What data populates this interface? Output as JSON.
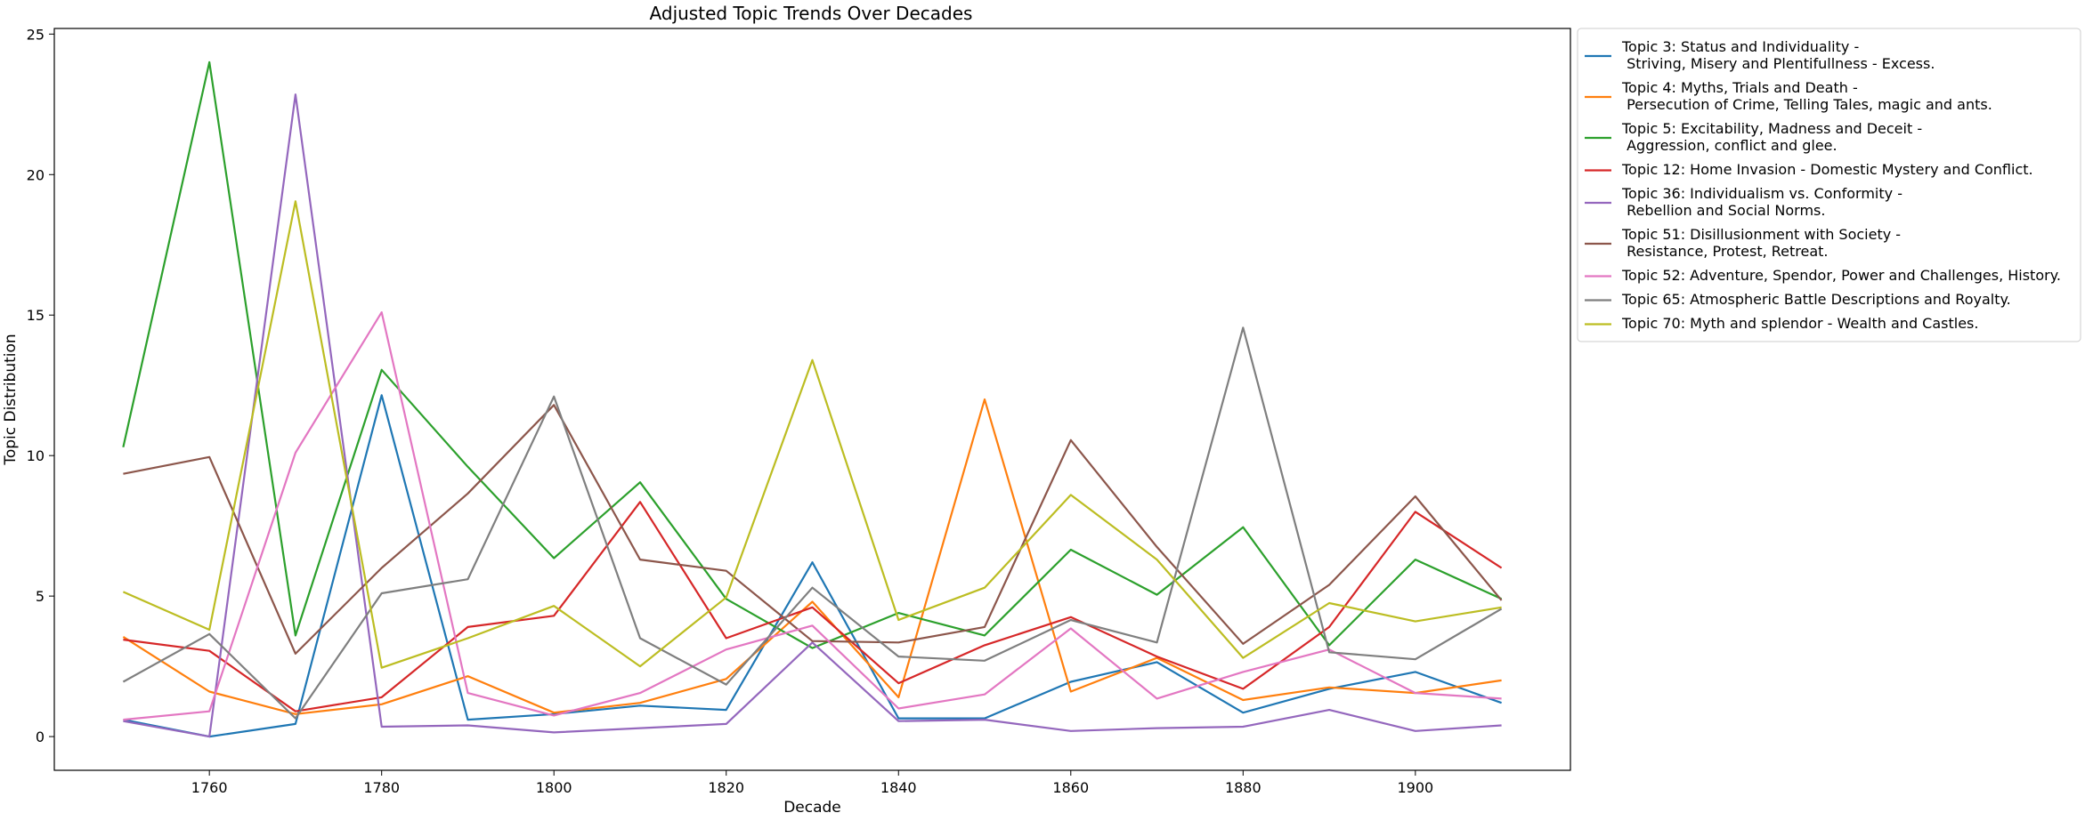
{
  "chart_data": {
    "type": "line",
    "title": "Adjusted Topic Trends Over Decades",
    "xlabel": "Decade",
    "ylabel": "Topic Distribution",
    "x": [
      1750,
      1760,
      1770,
      1780,
      1790,
      1800,
      1810,
      1820,
      1830,
      1840,
      1850,
      1860,
      1870,
      1880,
      1890,
      1900,
      1910
    ],
    "xlim": [
      1742,
      1918
    ],
    "ylim": [
      -1.2,
      25.2
    ],
    "xticks": [
      1760,
      1780,
      1800,
      1820,
      1840,
      1860,
      1880,
      1900
    ],
    "yticks": [
      0,
      5,
      10,
      15,
      20,
      25
    ],
    "grid": false,
    "legend_position": "outside-top-right",
    "series": [
      {
        "name": "Topic 3: Status and Individuality -\n Striving, Misery and Plentifullness - Excess.",
        "color": "#1f77b4",
        "values": [
          0.6,
          0.0,
          0.45,
          12.15,
          0.6,
          0.8,
          1.1,
          0.95,
          6.2,
          0.65,
          0.65,
          1.95,
          2.65,
          0.85,
          1.7,
          2.3,
          1.2
        ]
      },
      {
        "name": "Topic 4: Myths, Trials and Death -\n Persecution of Crime, Telling Tales, magic and ants.",
        "color": "#ff7f0e",
        "values": [
          3.55,
          1.6,
          0.8,
          1.15,
          2.15,
          0.85,
          1.2,
          2.05,
          4.8,
          1.4,
          12.0,
          1.6,
          2.8,
          1.3,
          1.75,
          1.55,
          2.0
        ]
      },
      {
        "name": "Topic 5: Excitability, Madness and Deceit -\n Aggression, conflict and glee.",
        "color": "#2ca02c",
        "values": [
          10.3,
          24.0,
          3.6,
          13.05,
          9.6,
          6.35,
          9.05,
          4.9,
          3.15,
          4.4,
          3.6,
          6.65,
          5.05,
          7.45,
          3.25,
          6.3,
          4.9
        ]
      },
      {
        "name": "Topic 12: Home Invasion - Domestic Mystery and Conflict.",
        "color": "#d62728",
        "values": [
          3.45,
          3.05,
          0.9,
          1.4,
          3.9,
          4.3,
          8.35,
          3.5,
          4.6,
          1.9,
          3.25,
          4.25,
          2.85,
          1.7,
          3.9,
          8.0,
          6.0
        ]
      },
      {
        "name": "Topic 36: Individualism vs. Conformity -\n Rebellion and Social Norms.",
        "color": "#9467bd",
        "values": [
          0.55,
          0.0,
          22.85,
          0.35,
          0.4,
          0.15,
          0.3,
          0.45,
          3.35,
          0.55,
          0.6,
          0.2,
          0.3,
          0.35,
          0.95,
          0.2,
          0.4
        ]
      },
      {
        "name": "Topic 51: Disillusionment with Society -\n Resistance, Protest, Retreat.",
        "color": "#8c564b",
        "values": [
          9.35,
          9.95,
          2.95,
          6.0,
          8.65,
          11.8,
          6.3,
          5.9,
          3.4,
          3.35,
          3.9,
          10.55,
          6.75,
          3.3,
          5.4,
          8.55,
          4.85
        ]
      },
      {
        "name": "Topic 52: Adventure, Spendor, Power and Challenges, History.",
        "color": "#e377c2",
        "values": [
          0.6,
          0.9,
          10.1,
          15.1,
          1.55,
          0.75,
          1.55,
          3.1,
          3.95,
          1.0,
          1.5,
          3.85,
          1.35,
          2.3,
          3.1,
          1.55,
          1.35
        ]
      },
      {
        "name": "Topic 65: Atmospheric Battle Descriptions and Royalty.",
        "color": "#7f7f7f",
        "values": [
          1.95,
          3.65,
          0.65,
          5.1,
          5.6,
          12.1,
          3.5,
          1.85,
          5.3,
          2.85,
          2.7,
          4.15,
          3.35,
          14.55,
          3.0,
          2.75,
          4.55
        ]
      },
      {
        "name": "Topic 70: Myth and splendor - Wealth and Castles.",
        "color": "#bcbd22",
        "values": [
          5.15,
          3.8,
          19.05,
          2.45,
          3.5,
          4.65,
          2.5,
          4.95,
          13.4,
          4.15,
          5.3,
          8.6,
          6.3,
          2.8,
          4.75,
          4.1,
          4.6
        ]
      }
    ]
  }
}
